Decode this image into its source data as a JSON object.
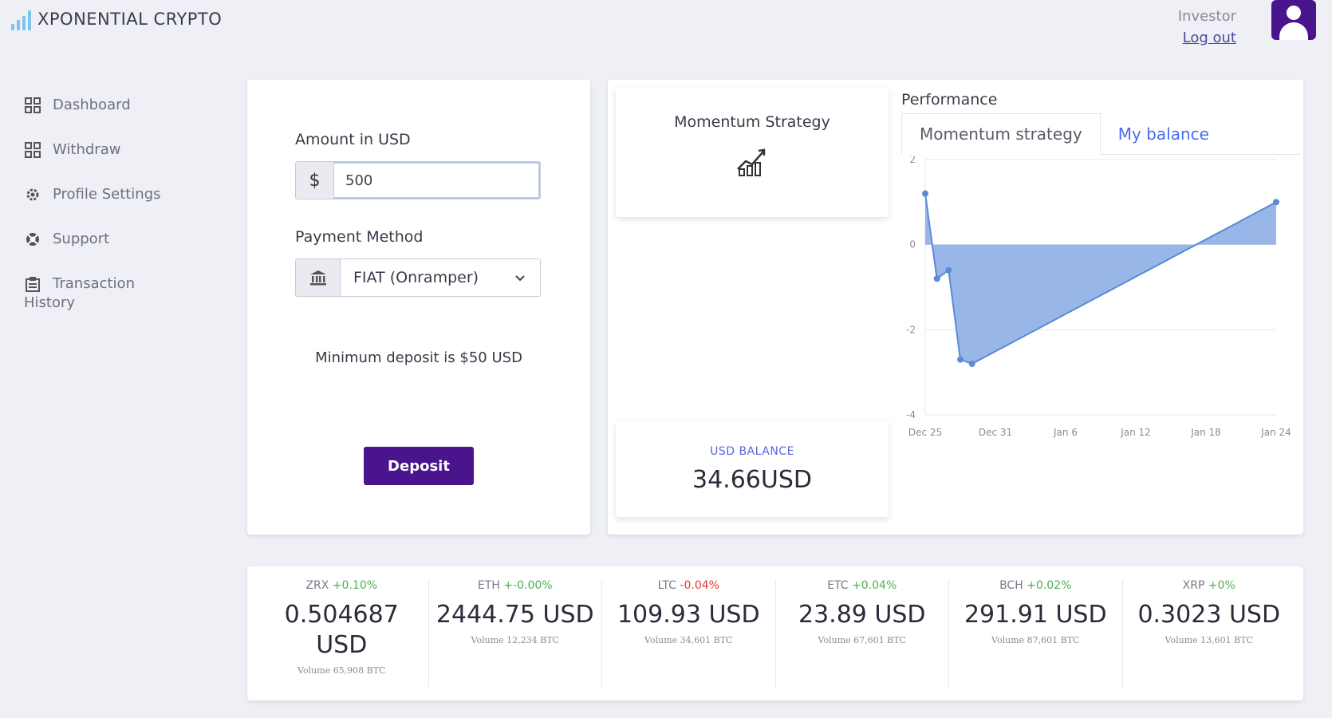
{
  "brand": {
    "name": "XPONENTIAL CRYPTO",
    "icon": "signal-bars-icon",
    "accent": "#7cc5ee"
  },
  "user": {
    "role": "Investor",
    "logout_label": "Log out",
    "avatar_color": "#4a148c"
  },
  "sidebar": {
    "items": [
      {
        "label": "Dashboard",
        "icon": "dashboard-grid-icon"
      },
      {
        "label": "Withdraw",
        "icon": "withdraw-grid-icon"
      },
      {
        "label": "Profile Settings",
        "icon": "gear-icon"
      },
      {
        "label": "Support",
        "icon": "support-lifebuoy-icon"
      },
      {
        "label": "Transaction History",
        "icon": "clipboard-icon"
      }
    ]
  },
  "deposit": {
    "amount_label": "Amount in USD",
    "currency_symbol": "$",
    "amount_value": "500",
    "payment_label": "Payment Method",
    "payment_value": "FIAT (Onramper)",
    "min_note": "Minimum deposit is $50 USD",
    "button_label": "Deposit",
    "button_color": "#4a148c"
  },
  "strategy": {
    "title": "Momentum Strategy",
    "icon": "growth-chart-icon"
  },
  "balance": {
    "label": "USD BALANCE",
    "value": "34.66USD"
  },
  "performance": {
    "title": "Performance",
    "tabs": [
      {
        "label": "Momentum strategy",
        "active": true
      },
      {
        "label": "My balance",
        "active": false
      }
    ]
  },
  "chart_data": {
    "type": "area",
    "x": [
      "Dec 25",
      "Dec 26",
      "Dec 27",
      "Dec 28",
      "Dec 29",
      "Jan 24"
    ],
    "values": [
      1.2,
      -0.8,
      -0.6,
      -2.7,
      -2.8,
      1.0
    ],
    "xticks": [
      "Dec 25",
      "Dec 31",
      "Jan 6",
      "Jan 12",
      "Jan 18",
      "Jan 24"
    ],
    "yticks": [
      "2",
      "0",
      "-2",
      "-4"
    ],
    "ylim": [
      -4,
      2
    ],
    "grid": true,
    "color": "#5b8ad8",
    "fill": "#8eaee6"
  },
  "tickers": [
    {
      "symbol": "ZRX",
      "change": "+0.10%",
      "direction": "pos",
      "price": "0.504687 USD",
      "volume": "Volume 65,908 BTC"
    },
    {
      "symbol": "ETH",
      "change": "+-0.00%",
      "direction": "pos",
      "price": "2444.75 USD",
      "volume": "Volume 12,234 BTC"
    },
    {
      "symbol": "LTC",
      "change": "-0.04%",
      "direction": "neg",
      "price": "109.93 USD",
      "volume": "Volume 34,601 BTC"
    },
    {
      "symbol": "ETC",
      "change": "+0.04%",
      "direction": "pos",
      "price": "23.89 USD",
      "volume": "Volume 67,601 BTC"
    },
    {
      "symbol": "BCH",
      "change": "+0.02%",
      "direction": "pos",
      "price": "291.91 USD",
      "volume": "Volume 87,601 BTC"
    },
    {
      "symbol": "XRP",
      "change": "+0%",
      "direction": "pos",
      "price": "0.3023 USD",
      "volume": "Volume 13,601 BTC"
    }
  ]
}
